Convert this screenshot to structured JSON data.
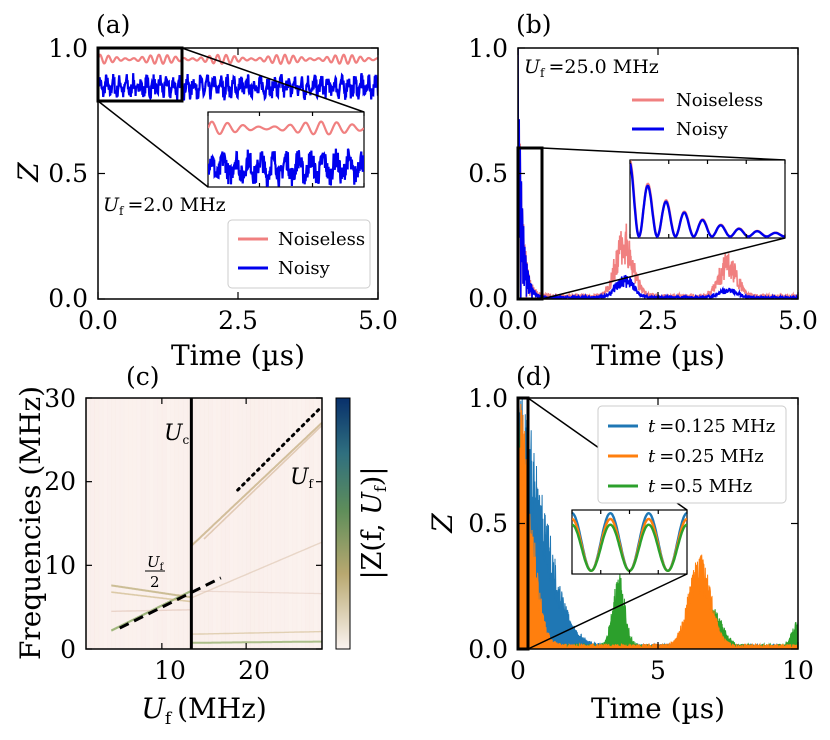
{
  "chart_data": [
    {
      "type": "line",
      "panel": "(a)",
      "xlabel": "Time (µs)",
      "ylabel": "Z",
      "xlim": [
        0,
        5.0
      ],
      "ylim": [
        0,
        1.0
      ],
      "xticks": [
        "0.0",
        "2.5",
        "5.0"
      ],
      "yticks": [
        "0.0",
        "0.5",
        "1.0"
      ],
      "annotation": "U_f = 2.0 MHz",
      "annotation_parts": {
        "symbol": "U",
        "subscript": "f",
        "value": "=2.0 MHz"
      },
      "legend": {
        "position": "lower-right",
        "entries": [
          "Noiseless",
          "Noisy"
        ]
      },
      "series": [
        {
          "name": "Noiseless",
          "color": "#f08080",
          "mean": 0.955,
          "amplitude": 0.018,
          "period_us": 0.15
        },
        {
          "name": "Noisy",
          "color": "#0000ee",
          "mean": 0.845,
          "amplitude": 0.025,
          "noise": 0.03
        }
      ],
      "zoom_box": {
        "x": [
          0,
          1.5
        ],
        "y": [
          0.79,
          1.0
        ]
      }
    },
    {
      "type": "line",
      "panel": "(b)",
      "xlabel": "Time (µs)",
      "ylabel": "",
      "xlim": [
        0,
        5.0
      ],
      "ylim": [
        0,
        1.0
      ],
      "xticks": [
        "0.0",
        "2.5",
        "5.0"
      ],
      "yticks": [
        "0.0",
        "0.5",
        "1.0"
      ],
      "annotation": "U_f = 25.0 MHz",
      "annotation_parts": {
        "symbol": "U",
        "subscript": "f",
        "value": "=25.0 MHz"
      },
      "legend": {
        "position": "top-right",
        "entries": [
          "Noiseless",
          "Noisy"
        ]
      },
      "series": [
        {
          "name": "Noiseless",
          "color": "#f08080",
          "decay_us": 0.08,
          "revivals": [
            {
              "t": 1.9,
              "peak": 0.3,
              "width": 0.22
            },
            {
              "t": 3.75,
              "peak": 0.18,
              "width": 0.22
            }
          ]
        },
        {
          "name": "Noisy",
          "color": "#0000ee",
          "decay_us": 0.08,
          "revivals": [
            {
              "t": 1.9,
              "peak": 0.1,
              "width": 0.22
            },
            {
              "t": 3.75,
              "peak": 0.04,
              "width": 0.22
            }
          ]
        }
      ],
      "zoom_box": {
        "x": [
          0,
          0.45
        ],
        "y": [
          0.0,
          0.6
        ]
      }
    },
    {
      "type": "heatmap",
      "panel": "(c)",
      "xlabel_parts": {
        "symbol": "U",
        "subscript": "f",
        "unit": "(MHz)"
      },
      "ylabel": "Frequencies (MHz)",
      "xlim": [
        1,
        29
      ],
      "ylim": [
        0,
        30
      ],
      "xticks": [
        "10",
        "20"
      ],
      "yticks": [
        "0",
        "10",
        "20",
        "30"
      ],
      "colorbar_label": "|Z(f, U_f)|",
      "colorbar_parts": {
        "open": "|Z(f, ",
        "symbol": "U",
        "subscript": "f",
        "close": ")|"
      },
      "colormap": [
        "#fbf3f0",
        "#b8a870",
        "#5f8e5a",
        "#2f6f7f",
        "#08306b"
      ],
      "labels": {
        "uc": "U_c",
        "uf": "U_f",
        "uf_half": "U_f / 2"
      },
      "uc_value_mhz": 13.5,
      "lines": [
        {
          "kind": "solid",
          "x": [
            13.5,
            13.5
          ],
          "y": [
            0,
            30
          ]
        },
        {
          "kind": "dotted",
          "x": [
            19,
            29
          ],
          "y": [
            19,
            29
          ]
        },
        {
          "kind": "dashed",
          "x": [
            5,
            17
          ],
          "y": [
            2.5,
            8.5
          ]
        }
      ]
    },
    {
      "type": "line",
      "panel": "(d)",
      "xlabel": "Time (µs)",
      "ylabel": "Z",
      "xlim": [
        0,
        10
      ],
      "ylim": [
        0,
        1.0
      ],
      "xticks": [
        "0",
        "5",
        "10"
      ],
      "yticks": [
        "0.0",
        "0.5",
        "1.0"
      ],
      "legend": {
        "position": "top-right",
        "entries": [
          "t =0.125 MHz",
          "t =0.25 MHz",
          "t =0.5 MHz"
        ]
      },
      "legend_parts": [
        {
          "symbol": "t",
          "value": "=0.125 MHz"
        },
        {
          "symbol": "t",
          "value": "=0.25 MHz"
        },
        {
          "symbol": "t",
          "value": "=0.5 MHz"
        }
      ],
      "series": [
        {
          "name": "t =0.125 MHz",
          "color": "#1f77b4",
          "decay_us": 0.9,
          "revivals": []
        },
        {
          "name": "t =0.25 MHz",
          "color": "#ff7f0e",
          "decay_us": 0.45,
          "revivals": [
            {
              "t": 6.5,
              "peak": 0.37,
              "width": 0.55
            }
          ]
        },
        {
          "name": "t =0.5 MHz",
          "color": "#2ca02c",
          "decay_us": 0.22,
          "revivals": [
            {
              "t": 3.6,
              "peak": 0.3,
              "width": 0.3
            },
            {
              "t": 7.0,
              "peak": 0.15,
              "width": 0.45
            },
            {
              "t": 10.0,
              "peak": 0.1,
              "width": 0.3
            }
          ]
        }
      ],
      "zoom_box": {
        "x": [
          0,
          0.3
        ],
        "y": [
          0.0,
          1.0
        ]
      }
    }
  ]
}
